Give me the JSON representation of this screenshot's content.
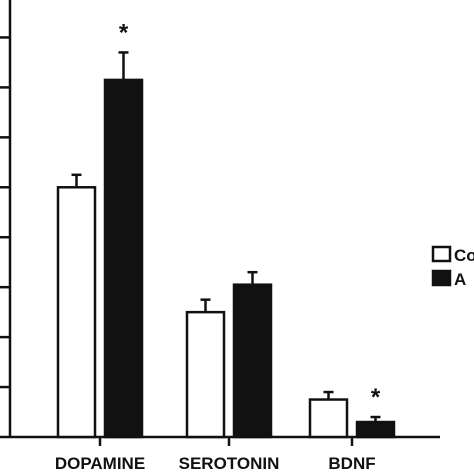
{
  "chart_data": {
    "type": "bar",
    "categories": [
      "DOPAMINE",
      "SEROTONIN",
      "BDNF"
    ],
    "series": [
      {
        "name": "Co",
        "fill": "#ffffff",
        "values": [
          10.0,
          5.0,
          1.5
        ],
        "errors": [
          0.5,
          0.5,
          0.3
        ]
      },
      {
        "name": "A",
        "fill": "#111111",
        "values": [
          14.3,
          6.1,
          0.6
        ],
        "errors": [
          1.1,
          0.5,
          0.2
        ]
      }
    ],
    "significance": [
      {
        "category": 0,
        "series": 1,
        "label": "*"
      },
      {
        "category": 2,
        "series": 1,
        "label": "*"
      }
    ],
    "ylim": [
      0,
      17.5
    ],
    "yticks": [
      0,
      2,
      4,
      6,
      8,
      10,
      12,
      14,
      16
    ],
    "title": "",
    "xlabel": "",
    "ylabel": "",
    "legend_position": "right, partially cropped",
    "grid": false,
    "colors": {
      "axis": "#111111",
      "control": "#ffffff",
      "treated": "#111111"
    }
  }
}
